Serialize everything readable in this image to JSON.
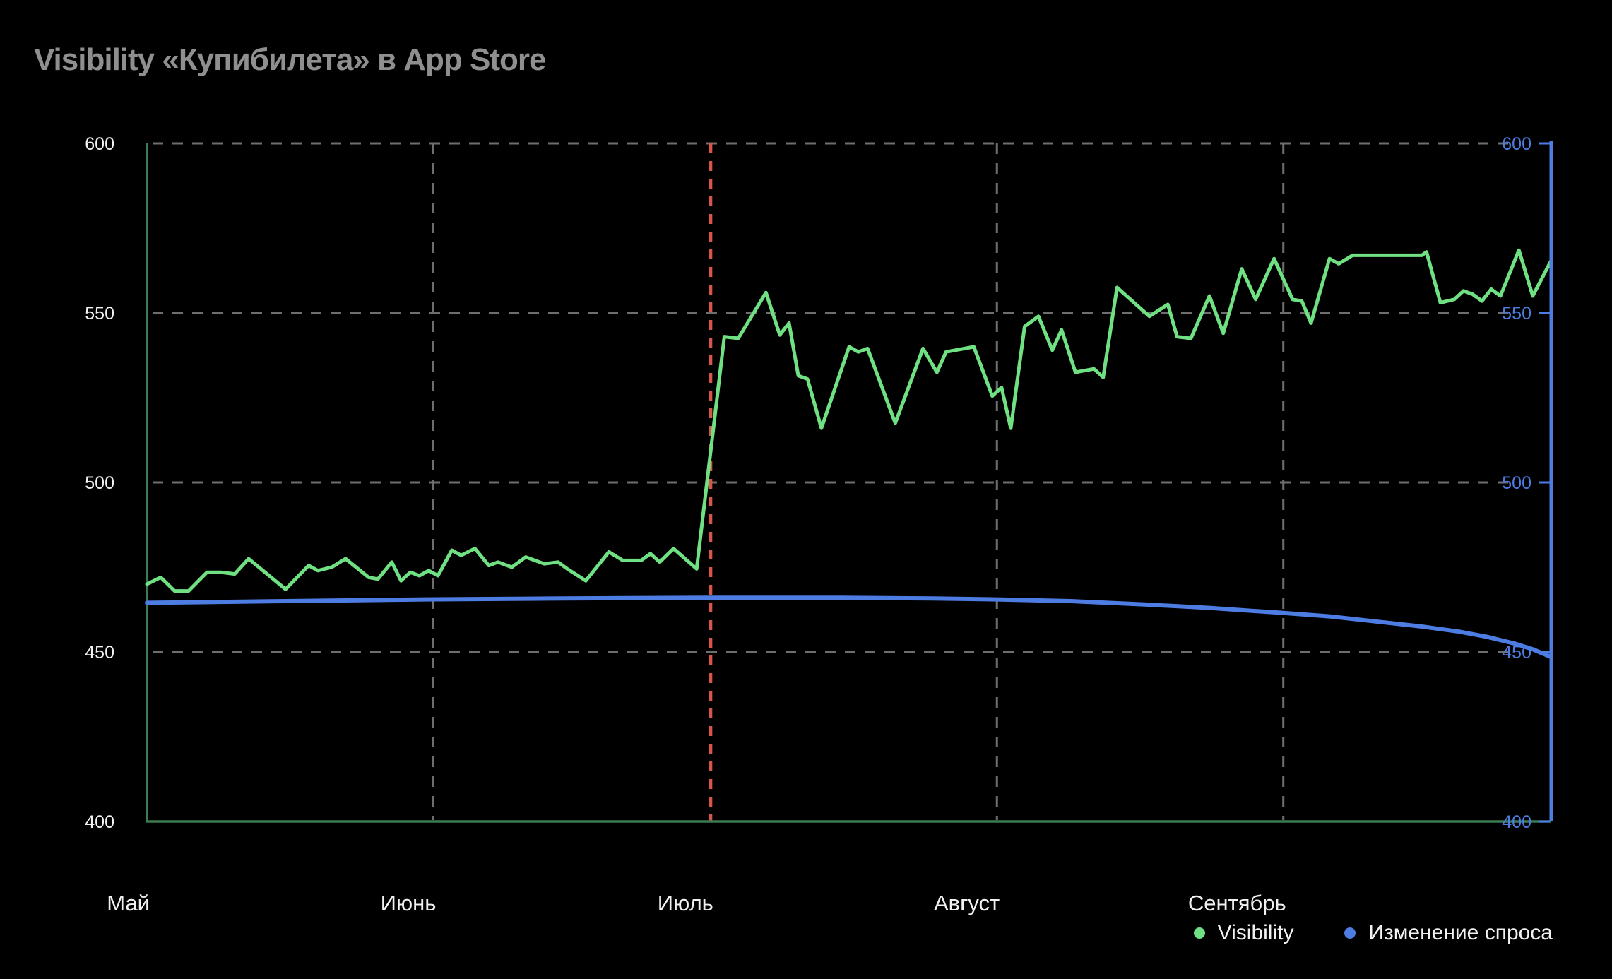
{
  "header": {
    "title": "Visibility «Купибилета» в App Store"
  },
  "chart_data": {
    "type": "line",
    "title": "Visibility «Купибилета» в App Store",
    "x_axis": {
      "unit": "days_from_may_1",
      "domain": [
        0,
        152
      ],
      "months": [
        {
          "label": "Май",
          "day": 0
        },
        {
          "label": "Июнь",
          "day": 31
        },
        {
          "label": "Июль",
          "day": 61
        },
        {
          "label": "Август",
          "day": 92
        },
        {
          "label": "Сентябрь",
          "day": 123
        }
      ]
    },
    "y_axis": {
      "range": [
        400,
        600
      ],
      "ticks": [
        400,
        450,
        500,
        550,
        600
      ],
      "left_label_color": "#f1f1f1",
      "right_label_color": "#4d7ce2"
    },
    "grid": {
      "show": true,
      "color": "#6e6e6e",
      "dash": "15 13"
    },
    "event_line": {
      "day": 61,
      "color": "#d9544a",
      "style": "dashed",
      "note": "Июль"
    },
    "axes_colors": {
      "left": "#3c7a50",
      "bottom": "#3c7a50",
      "right": "#4d7ce2"
    },
    "series": [
      {
        "name": "Visibility",
        "color": "#70e183",
        "width": 5,
        "points": [
          [
            0,
            470
          ],
          [
            1.5,
            472
          ],
          [
            3,
            468
          ],
          [
            4.5,
            468
          ],
          [
            6.5,
            473.5
          ],
          [
            8,
            473.5
          ],
          [
            9.5,
            473
          ],
          [
            11,
            477.5
          ],
          [
            15,
            468.5
          ],
          [
            17.5,
            475.5
          ],
          [
            18.5,
            474
          ],
          [
            20,
            475
          ],
          [
            21.5,
            477.5
          ],
          [
            24,
            472
          ],
          [
            25,
            471.5
          ],
          [
            26.5,
            476.5
          ],
          [
            27.5,
            471
          ],
          [
            28.5,
            473.5
          ],
          [
            29.5,
            472.5
          ],
          [
            30.5,
            474
          ],
          [
            31.5,
            472.5
          ],
          [
            33,
            480
          ],
          [
            34,
            478.5
          ],
          [
            35.5,
            480.5
          ],
          [
            37,
            475.5
          ],
          [
            38,
            476.5
          ],
          [
            39.5,
            475
          ],
          [
            41,
            478
          ],
          [
            43,
            476
          ],
          [
            44.5,
            476.5
          ],
          [
            45.5,
            474.5
          ],
          [
            47.5,
            471
          ],
          [
            50,
            479.5
          ],
          [
            51.5,
            477
          ],
          [
            53.5,
            477
          ],
          [
            54.5,
            479
          ],
          [
            55.5,
            476.5
          ],
          [
            57,
            480.5
          ],
          [
            59.5,
            474.5
          ],
          [
            62.5,
            543
          ],
          [
            64,
            542.5
          ],
          [
            67,
            556
          ],
          [
            68.5,
            543.5
          ],
          [
            69.5,
            547
          ],
          [
            70.5,
            531.5
          ],
          [
            71.5,
            530.5
          ],
          [
            73,
            516
          ],
          [
            76,
            540
          ],
          [
            77,
            538.5
          ],
          [
            78,
            539.5
          ],
          [
            81,
            517.5
          ],
          [
            84,
            539.5
          ],
          [
            85.5,
            532.5
          ],
          [
            86.5,
            538.5
          ],
          [
            89.5,
            540
          ],
          [
            91.5,
            525.5
          ],
          [
            92.5,
            528
          ],
          [
            93.5,
            516
          ],
          [
            95,
            546
          ],
          [
            96.5,
            549
          ],
          [
            98,
            539
          ],
          [
            99,
            545
          ],
          [
            100.5,
            532.5
          ],
          [
            102.5,
            533.5
          ],
          [
            103.5,
            531
          ],
          [
            105,
            557.5
          ],
          [
            108.5,
            549
          ],
          [
            110.5,
            552.5
          ],
          [
            111.5,
            543
          ],
          [
            113,
            542.5
          ],
          [
            115,
            555
          ],
          [
            116.5,
            544
          ],
          [
            118.5,
            563
          ],
          [
            120,
            554
          ],
          [
            122,
            566
          ],
          [
            124,
            554
          ],
          [
            125,
            553.5
          ],
          [
            126,
            547
          ],
          [
            128,
            566
          ],
          [
            129,
            564.5
          ],
          [
            130.5,
            567
          ],
          [
            138,
            567
          ],
          [
            138.5,
            568
          ],
          [
            140,
            553
          ],
          [
            141.5,
            554
          ],
          [
            142.5,
            556.5
          ],
          [
            143.5,
            555.5
          ],
          [
            144.5,
            553.5
          ],
          [
            145.5,
            557
          ],
          [
            146.5,
            555
          ],
          [
            148.5,
            568.5
          ],
          [
            150,
            555
          ],
          [
            152,
            565.5
          ]
        ]
      },
      {
        "name": "Изменение спроса",
        "color": "#4d7ce2",
        "width": 6,
        "points": [
          [
            0,
            464.5
          ],
          [
            15,
            465
          ],
          [
            30,
            465.5
          ],
          [
            45,
            465.8
          ],
          [
            61,
            466
          ],
          [
            75,
            466
          ],
          [
            85,
            465.8
          ],
          [
            92,
            465.5
          ],
          [
            100,
            465
          ],
          [
            108,
            464
          ],
          [
            115,
            463
          ],
          [
            123,
            461.5
          ],
          [
            128,
            460.5
          ],
          [
            133,
            459
          ],
          [
            138,
            457.5
          ],
          [
            142,
            456
          ],
          [
            145,
            454.5
          ],
          [
            148,
            452.5
          ],
          [
            150,
            450.8
          ],
          [
            152,
            448.5
          ]
        ]
      }
    ],
    "legend": {
      "position": "bottom-right",
      "items": [
        {
          "label": "Visibility",
          "color": "#70e183"
        },
        {
          "label": "Изменение спроса",
          "color": "#4d7ce2"
        }
      ]
    }
  }
}
